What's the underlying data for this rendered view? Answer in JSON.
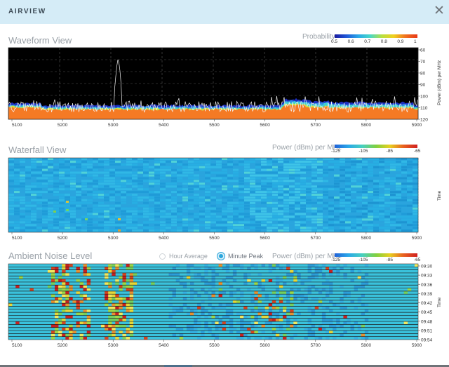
{
  "window": {
    "title": "AIRVIEW"
  },
  "colors": {
    "header_bg": "#d5ecf7",
    "accent": "#2aa6dc",
    "section_title": "#9aa1a8"
  },
  "waveform": {
    "title": "Waveform View",
    "legend_title": "Probability",
    "legend_ticks": [
      "0.5",
      "0.6",
      "0.7",
      "0.8",
      "0.9",
      "1"
    ],
    "y_axis_label": "Power (dBm) per MHz",
    "y_ticks": [
      "60",
      "70",
      "80",
      "90",
      "100",
      "110",
      "120"
    ],
    "x_ticks": [
      "5100",
      "5200",
      "5300",
      "5400",
      "5500",
      "5600",
      "5700",
      "5800",
      "5900"
    ]
  },
  "waterfall": {
    "title": "Waterfall View",
    "legend_title": "Power (dBm) per MHz",
    "legend_ticks": [
      "-125",
      "-105",
      "-85",
      "-65"
    ],
    "y_axis_label": "Time",
    "x_ticks": [
      "5100",
      "5200",
      "5300",
      "5400",
      "5500",
      "5600",
      "5700",
      "5800",
      "5900"
    ]
  },
  "ambient": {
    "title": "Ambient Noise Level",
    "radio_hour": "Hour Average",
    "radio_minute": "Minute Peak",
    "selected_mode": "Minute Peak",
    "legend_title": "Power (dBm) per MHz",
    "legend_ticks": [
      "-125",
      "-105",
      "-85",
      "-65"
    ],
    "y_axis_label": "Time",
    "time_ticks": [
      "09:30",
      "09:33",
      "09:36",
      "09:39",
      "09:42",
      "09:45",
      "09:48",
      "09:51",
      "09:54"
    ],
    "x_ticks": [
      "5100",
      "5200",
      "5300",
      "5400",
      "5500",
      "5600",
      "5700",
      "5800",
      "5900"
    ]
  }
}
